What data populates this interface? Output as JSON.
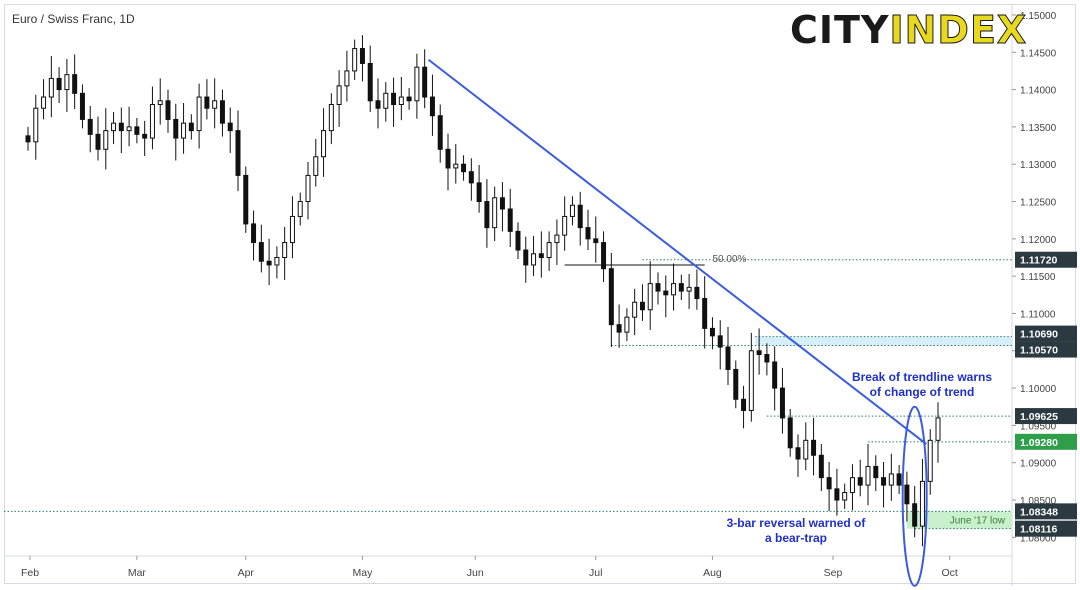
{
  "title": "Euro / Swiss Franc, 1D",
  "brand": {
    "part1": "CITY",
    "part2": "INDEX"
  },
  "colors": {
    "trendline": "#3b5be0",
    "candle": "#111111",
    "grid_dotted": "#2e7d6b",
    "label_dark": "#2b3a40",
    "label_green": "#2e9e4a",
    "band_green": "#c9f0cc",
    "band_blue": "#d6eef7",
    "annotation": "#1f2fc8"
  },
  "chart_data": {
    "type": "candlestick",
    "instrument": "Euro / Swiss Franc",
    "timeframe": "1D",
    "x_labels": [
      "Feb",
      "Mar",
      "Apr",
      "May",
      "Jun",
      "Jul",
      "Aug",
      "Sep",
      "Oct"
    ],
    "y_ticks": [
      1.15,
      1.145,
      1.14,
      1.135,
      1.13,
      1.125,
      1.12,
      1.115,
      1.11,
      1.105,
      1.1,
      1.095,
      1.09,
      1.085,
      1.08
    ],
    "y_tick_labels": [
      "1.15000",
      "1.14500",
      "1.14000",
      "1.13500",
      "1.13000",
      "1.12500",
      "1.12000",
      "1.11500",
      "1.11000",
      "1.10500",
      "1.10000",
      "1.09500",
      "1.09000",
      "1.08500",
      "1.08000"
    ],
    "ylim": [
      1.0775,
      1.1512
    ],
    "xlim_days": [
      0,
      252
    ],
    "closes": [
      {
        "d": 0,
        "c": 1.133
      },
      {
        "d": 2,
        "c": 1.1375
      },
      {
        "d": 4,
        "c": 1.139
      },
      {
        "d": 6,
        "c": 1.1415
      },
      {
        "d": 8,
        "c": 1.14
      },
      {
        "d": 10,
        "c": 1.142
      },
      {
        "d": 12,
        "c": 1.1395
      },
      {
        "d": 14,
        "c": 1.136
      },
      {
        "d": 16,
        "c": 1.134
      },
      {
        "d": 18,
        "c": 1.132
      },
      {
        "d": 20,
        "c": 1.1345
      },
      {
        "d": 22,
        "c": 1.1355
      },
      {
        "d": 24,
        "c": 1.1345
      },
      {
        "d": 26,
        "c": 1.135
      },
      {
        "d": 28,
        "c": 1.134
      },
      {
        "d": 30,
        "c": 1.1335
      },
      {
        "d": 32,
        "c": 1.138
      },
      {
        "d": 34,
        "c": 1.1385
      },
      {
        "d": 36,
        "c": 1.136
      },
      {
        "d": 38,
        "c": 1.1335
      },
      {
        "d": 40,
        "c": 1.1355
      },
      {
        "d": 42,
        "c": 1.1345
      },
      {
        "d": 44,
        "c": 1.139
      },
      {
        "d": 46,
        "c": 1.1375
      },
      {
        "d": 48,
        "c": 1.1385
      },
      {
        "d": 50,
        "c": 1.1355
      },
      {
        "d": 52,
        "c": 1.1345
      },
      {
        "d": 54,
        "c": 1.1285
      },
      {
        "d": 56,
        "c": 1.122
      },
      {
        "d": 58,
        "c": 1.1195
      },
      {
        "d": 60,
        "c": 1.117
      },
      {
        "d": 62,
        "c": 1.1165
      },
      {
        "d": 64,
        "c": 1.1175
      },
      {
        "d": 66,
        "c": 1.1195
      },
      {
        "d": 68,
        "c": 1.123
      },
      {
        "d": 70,
        "c": 1.125
      },
      {
        "d": 72,
        "c": 1.1285
      },
      {
        "d": 74,
        "c": 1.131
      },
      {
        "d": 76,
        "c": 1.1345
      },
      {
        "d": 78,
        "c": 1.138
      },
      {
        "d": 80,
        "c": 1.1405
      },
      {
        "d": 82,
        "c": 1.1425
      },
      {
        "d": 84,
        "c": 1.1455
      },
      {
        "d": 86,
        "c": 1.1435
      },
      {
        "d": 88,
        "c": 1.1385
      },
      {
        "d": 90,
        "c": 1.1375
      },
      {
        "d": 92,
        "c": 1.1395
      },
      {
        "d": 94,
        "c": 1.138
      },
      {
        "d": 96,
        "c": 1.139
      },
      {
        "d": 98,
        "c": 1.1385
      },
      {
        "d": 100,
        "c": 1.143
      },
      {
        "d": 102,
        "c": 1.139
      },
      {
        "d": 104,
        "c": 1.1365
      },
      {
        "d": 106,
        "c": 1.132
      },
      {
        "d": 108,
        "c": 1.1295
      },
      {
        "d": 110,
        "c": 1.13
      },
      {
        "d": 112,
        "c": 1.129
      },
      {
        "d": 114,
        "c": 1.1275
      },
      {
        "d": 116,
        "c": 1.125
      },
      {
        "d": 118,
        "c": 1.1215
      },
      {
        "d": 120,
        "c": 1.1255
      },
      {
        "d": 122,
        "c": 1.124
      },
      {
        "d": 124,
        "c": 1.121
      },
      {
        "d": 126,
        "c": 1.1185
      },
      {
        "d": 128,
        "c": 1.1165
      },
      {
        "d": 130,
        "c": 1.118
      },
      {
        "d": 132,
        "c": 1.1175
      },
      {
        "d": 134,
        "c": 1.1195
      },
      {
        "d": 136,
        "c": 1.1205
      },
      {
        "d": 138,
        "c": 1.123
      },
      {
        "d": 140,
        "c": 1.1245
      },
      {
        "d": 142,
        "c": 1.1215
      },
      {
        "d": 144,
        "c": 1.12
      },
      {
        "d": 146,
        "c": 1.1195
      },
      {
        "d": 148,
        "c": 1.116
      },
      {
        "d": 150,
        "c": 1.1085
      },
      {
        "d": 152,
        "c": 1.1075
      },
      {
        "d": 154,
        "c": 1.1095
      },
      {
        "d": 156,
        "c": 1.1115
      },
      {
        "d": 158,
        "c": 1.1105
      },
      {
        "d": 160,
        "c": 1.114
      },
      {
        "d": 162,
        "c": 1.113
      },
      {
        "d": 164,
        "c": 1.1125
      },
      {
        "d": 166,
        "c": 1.114
      },
      {
        "d": 168,
        "c": 1.113
      },
      {
        "d": 170,
        "c": 1.1135
      },
      {
        "d": 172,
        "c": 1.112
      },
      {
        "d": 174,
        "c": 1.108
      },
      {
        "d": 176,
        "c": 1.107
      },
      {
        "d": 178,
        "c": 1.1055
      },
      {
        "d": 180,
        "c": 1.1025
      },
      {
        "d": 182,
        "c": 1.0985
      },
      {
        "d": 184,
        "c": 1.097
      },
      {
        "d": 186,
        "c": 1.105
      },
      {
        "d": 188,
        "c": 1.1045
      },
      {
        "d": 190,
        "c": 1.1035
      },
      {
        "d": 192,
        "c": 1.1
      },
      {
        "d": 194,
        "c": 1.096
      },
      {
        "d": 196,
        "c": 1.092
      },
      {
        "d": 198,
        "c": 1.0905
      },
      {
        "d": 200,
        "c": 1.093
      },
      {
        "d": 202,
        "c": 1.091
      },
      {
        "d": 204,
        "c": 1.088
      },
      {
        "d": 206,
        "c": 1.0865
      },
      {
        "d": 208,
        "c": 1.085
      },
      {
        "d": 210,
        "c": 1.086
      },
      {
        "d": 212,
        "c": 1.088
      },
      {
        "d": 214,
        "c": 1.087
      },
      {
        "d": 216,
        "c": 1.0895
      },
      {
        "d": 218,
        "c": 1.088
      },
      {
        "d": 220,
        "c": 1.087
      },
      {
        "d": 222,
        "c": 1.0885
      },
      {
        "d": 224,
        "c": 1.087
      },
      {
        "d": 226,
        "c": 1.0845
      },
      {
        "d": 228,
        "c": 1.0815
      },
      {
        "d": 230,
        "c": 1.0875
      },
      {
        "d": 232,
        "c": 1.093
      },
      {
        "d": 234,
        "c": 1.096
      }
    ],
    "trendline": {
      "from": {
        "d": 103,
        "price": 1.144
      },
      "to": {
        "d": 231,
        "price": 1.0925
      }
    },
    "levels": [
      {
        "price": 1.1172,
        "label": "1.11720",
        "style": "dark"
      },
      {
        "price": 1.1069,
        "label": "1.10690",
        "style": "dark"
      },
      {
        "price": 1.1057,
        "label": "1.10570",
        "style": "dark"
      },
      {
        "price": 1.09625,
        "label": "1.09625",
        "style": "dark"
      },
      {
        "price": 1.0928,
        "label": "1.09280",
        "style": "green"
      },
      {
        "price": 1.08348,
        "label": "1.08348",
        "style": "dark"
      },
      {
        "price": 1.08116,
        "label": "1.08116",
        "style": "dark"
      }
    ],
    "fib": {
      "label": "50.00%",
      "price": 1.1165
    },
    "band_june_low": {
      "label": "June '17 low",
      "from": 1.08116,
      "to": 1.08348
    },
    "band_resistance": {
      "from": 1.1057,
      "to": 1.1069
    },
    "annotations": [
      {
        "text": [
          "Break of trendline warns",
          "of change of trend"
        ]
      },
      {
        "text": [
          "3-bar reversal warned of",
          "a bear-trap"
        ]
      }
    ]
  }
}
